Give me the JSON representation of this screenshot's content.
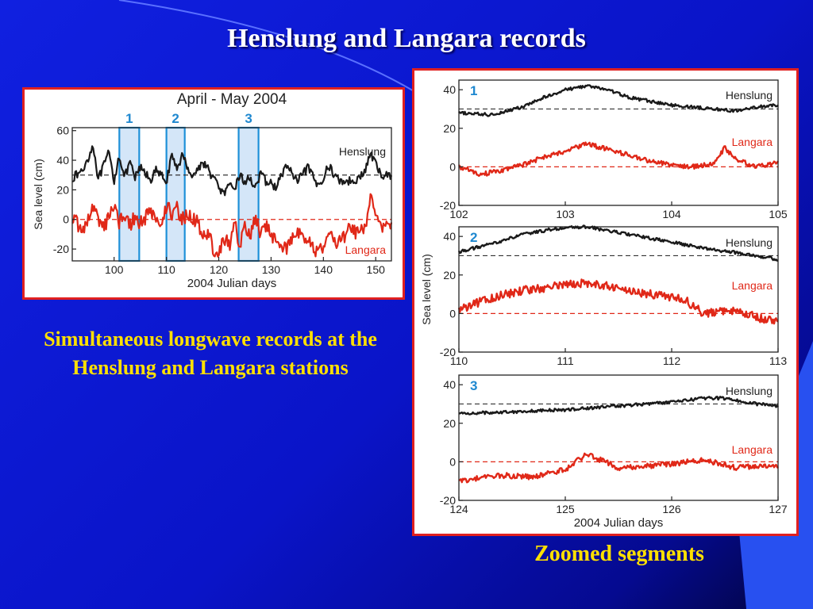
{
  "slide": {
    "title": "Henslung and Langara records",
    "caption_left": "Simultaneous longwave records at the Henslung and Langara stations",
    "caption_right": "Zoomed segments"
  },
  "chart_data": [
    {
      "type": "line",
      "title": "April - May 2004",
      "xlabel": "2004 Julian days",
      "ylabel": "Sea level (cm)",
      "xlim": [
        92,
        153
      ],
      "ylim": [
        -28,
        62
      ],
      "xticks": [
        100,
        110,
        120,
        130,
        140,
        150
      ],
      "yticks": [
        -20,
        0,
        20,
        40,
        60
      ],
      "reference_lines": [
        30,
        0
      ],
      "highlight_bands": [
        {
          "label": "1",
          "range": [
            101,
            104.8
          ]
        },
        {
          "label": "2",
          "range": [
            110,
            113.5
          ]
        },
        {
          "label": "3",
          "range": [
            123.8,
            127.6
          ]
        }
      ],
      "series": [
        {
          "name": "Henslung",
          "color": "#1a1a1a",
          "noise": 3,
          "x": [
            92,
            94,
            96,
            97,
            99,
            100,
            101,
            102,
            103,
            104,
            105,
            107,
            108,
            110,
            111,
            112,
            113,
            115,
            117,
            119,
            120,
            121,
            122,
            123,
            124,
            125,
            126,
            127,
            128,
            129,
            131,
            133,
            135,
            137,
            139,
            141,
            143,
            145,
            147,
            148,
            149,
            150,
            151,
            152
          ],
          "y": [
            28,
            33,
            50,
            27,
            45,
            26,
            44,
            28,
            38,
            28,
            35,
            27,
            33,
            26,
            42,
            35,
            43,
            29,
            39,
            28,
            22,
            17,
            22,
            21,
            30,
            25,
            28,
            22,
            30,
            26,
            22,
            37,
            25,
            35,
            22,
            36,
            26,
            26,
            28,
            33,
            45,
            37,
            30,
            30
          ]
        },
        {
          "name": "Langara",
          "color": "#e02818",
          "noise": 5,
          "x": [
            92,
            94,
            96,
            98,
            100,
            101,
            102,
            103,
            104,
            105,
            107,
            109,
            110,
            111,
            112,
            113,
            114,
            116,
            117,
            118,
            119,
            120,
            121,
            122,
            123,
            124,
            125,
            126,
            127,
            128,
            129,
            131,
            133,
            135,
            137,
            139,
            141,
            143,
            145,
            147,
            148,
            149,
            150,
            151,
            152
          ],
          "y": [
            2,
            -8,
            8,
            -6,
            10,
            -2,
            4,
            -4,
            2,
            -2,
            5,
            -4,
            10,
            3,
            8,
            0,
            3,
            -2,
            -10,
            -8,
            -22,
            -25,
            -12,
            -18,
            -2,
            -16,
            -6,
            -10,
            0,
            -10,
            -5,
            -14,
            -20,
            -8,
            -12,
            -24,
            -10,
            -16,
            -6,
            -10,
            -4,
            15,
            2,
            -5,
            -3
          ]
        }
      ]
    },
    {
      "type": "line",
      "label": "1",
      "ylabel": "",
      "xlim": [
        102,
        105
      ],
      "ylim": [
        -20,
        45
      ],
      "xticks": [
        102,
        103,
        104,
        105
      ],
      "yticks": [
        -20,
        0,
        20,
        40
      ],
      "reference_lines": [
        30,
        0
      ],
      "series": [
        {
          "name": "Henslung",
          "color": "#1a1a1a",
          "noise": 0.8,
          "x": [
            102,
            102.3,
            102.6,
            102.8,
            103,
            103.2,
            103.4,
            103.6,
            103.8,
            104,
            104.2,
            104.4,
            104.6,
            104.8,
            105
          ],
          "y": [
            28,
            27,
            31,
            36,
            40,
            42,
            40,
            36,
            34,
            32,
            31,
            30,
            29,
            31,
            32
          ]
        },
        {
          "name": "Langara",
          "color": "#e02818",
          "noise": 1.2,
          "x": [
            102,
            102.2,
            102.4,
            102.6,
            102.8,
            103,
            103.2,
            103.4,
            103.6,
            103.8,
            104,
            104.2,
            104.4,
            104.5,
            104.6,
            104.8,
            105
          ],
          "y": [
            0,
            -4,
            -2,
            1,
            5,
            8,
            12,
            9,
            6,
            3,
            1,
            0,
            2,
            10,
            4,
            0,
            2
          ]
        }
      ]
    },
    {
      "type": "line",
      "label": "2",
      "ylabel": "Sea level (cm)",
      "xlim": [
        110,
        113
      ],
      "ylim": [
        -20,
        45
      ],
      "xticks": [
        110,
        111,
        112,
        113
      ],
      "yticks": [
        -20,
        0,
        20,
        40
      ],
      "reference_lines": [
        30,
        0
      ],
      "series": [
        {
          "name": "Henslung",
          "color": "#1a1a1a",
          "noise": 0.8,
          "x": [
            110,
            110.3,
            110.6,
            110.9,
            111.2,
            111.5,
            111.8,
            112.1,
            112.4,
            112.7,
            113
          ],
          "y": [
            32,
            36,
            41,
            44,
            45,
            42,
            39,
            36,
            33,
            31,
            28
          ]
        },
        {
          "name": "Langara",
          "color": "#e02818",
          "noise": 2.2,
          "x": [
            110,
            110.3,
            110.6,
            110.9,
            111.2,
            111.5,
            111.8,
            112.1,
            112.3,
            112.6,
            112.8,
            113
          ],
          "y": [
            2,
            8,
            12,
            14,
            16,
            13,
            10,
            8,
            0,
            2,
            -2,
            -4
          ]
        }
      ]
    },
    {
      "type": "line",
      "label": "3",
      "ylabel": "",
      "xlabel": "2004 Julian days",
      "xlim": [
        124,
        127
      ],
      "ylim": [
        -20,
        45
      ],
      "xticks": [
        124,
        125,
        126,
        127
      ],
      "yticks": [
        -20,
        0,
        20,
        40
      ],
      "reference_lines": [
        30,
        0
      ],
      "series": [
        {
          "name": "Henslung",
          "color": "#1a1a1a",
          "noise": 0.8,
          "x": [
            124,
            124.5,
            125,
            125.5,
            126,
            126.3,
            126.5,
            126.8,
            127
          ],
          "y": [
            25,
            26,
            27,
            29,
            31,
            33,
            33,
            30,
            29
          ]
        },
        {
          "name": "Langara",
          "color": "#e02818",
          "noise": 1.4,
          "x": [
            124,
            124.4,
            124.7,
            125,
            125.2,
            125.5,
            125.8,
            126,
            126.3,
            126.6,
            126.9,
            127
          ],
          "y": [
            -10,
            -7,
            -8,
            -4,
            4,
            -3,
            -2,
            -1,
            1,
            -3,
            -2,
            -3
          ]
        }
      ]
    }
  ]
}
